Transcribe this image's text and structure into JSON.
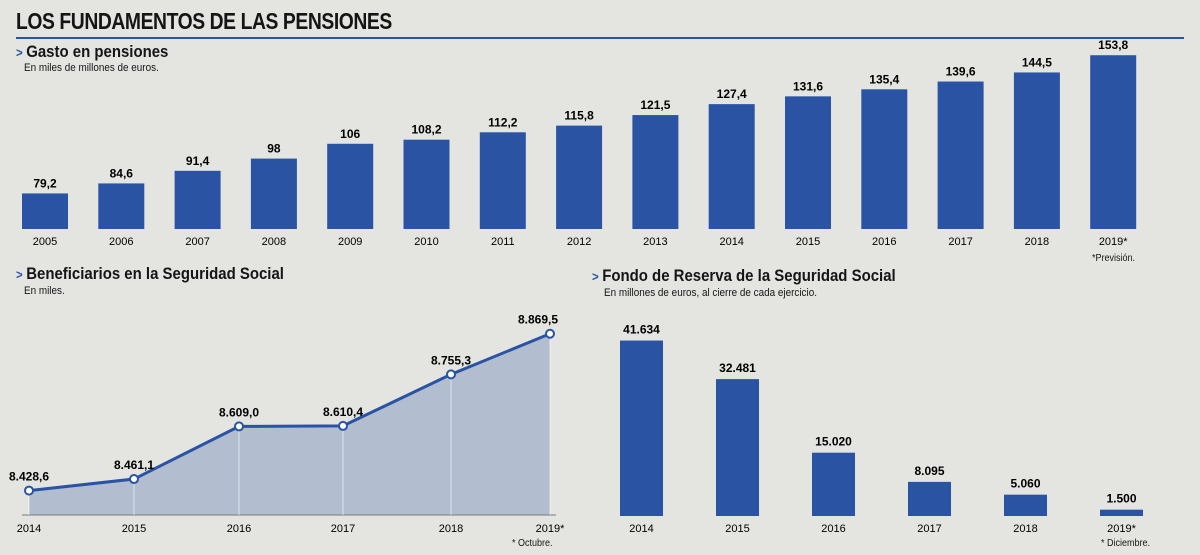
{
  "title": "LOS FUNDAMENTOS DE LAS PENSIONES",
  "colors": {
    "bar": "#2a54a3",
    "area": "#a9b6cc",
    "line": "#2a54a3",
    "accent": "#2a54a3"
  },
  "chart_data": [
    {
      "type": "bar",
      "title": "Gasto en pensiones",
      "subtitle": "En miles de millones de euros.",
      "categories": [
        "2005",
        "2006",
        "2007",
        "2008",
        "2009",
        "2010",
        "2011",
        "2012",
        "2013",
        "2014",
        "2015",
        "2016",
        "2017",
        "2018",
        "2019*"
      ],
      "values": [
        79.2,
        84.6,
        91.4,
        98,
        106,
        108.2,
        112.2,
        115.8,
        121.5,
        127.4,
        131.6,
        135.4,
        139.6,
        144.5,
        153.8
      ],
      "labels": [
        "79,2",
        "84,6",
        "91,4",
        "98",
        "106",
        "108,2",
        "112,2",
        "115,8",
        "121,5",
        "127,4",
        "131,6",
        "135,4",
        "139,6",
        "144,5",
        "153,8"
      ],
      "ylim": [
        60,
        155
      ],
      "note": "*Previsión."
    },
    {
      "type": "area",
      "title": "Beneficiarios en la Seguridad Social",
      "subtitle": "En miles.",
      "categories": [
        "2014",
        "2015",
        "2016",
        "2017",
        "2018",
        "2019*"
      ],
      "values": [
        8428.6,
        8461.1,
        8609.0,
        8610.4,
        8755.3,
        8869.5
      ],
      "labels": [
        "8.428,6",
        "8.461,1",
        "8.609,0",
        "8.610,4",
        "8.755,3",
        "8.869,5"
      ],
      "ylim": [
        8360,
        8880
      ],
      "note": "* Octubre."
    },
    {
      "type": "bar",
      "title": "Fondo de Reserva de la Seguridad Social",
      "subtitle": "En millones de euros, al cierre de cada ejercicio.",
      "categories": [
        "2014",
        "2015",
        "2016",
        "2017",
        "2018",
        "2019*"
      ],
      "values": [
        41634,
        32481,
        15020,
        8095,
        5060,
        1500
      ],
      "labels": [
        "41.634",
        "32.481",
        "15.020",
        "8.095",
        "5.060",
        "1.500"
      ],
      "ylim": [
        0,
        42000
      ],
      "note": "* Diciembre."
    }
  ]
}
